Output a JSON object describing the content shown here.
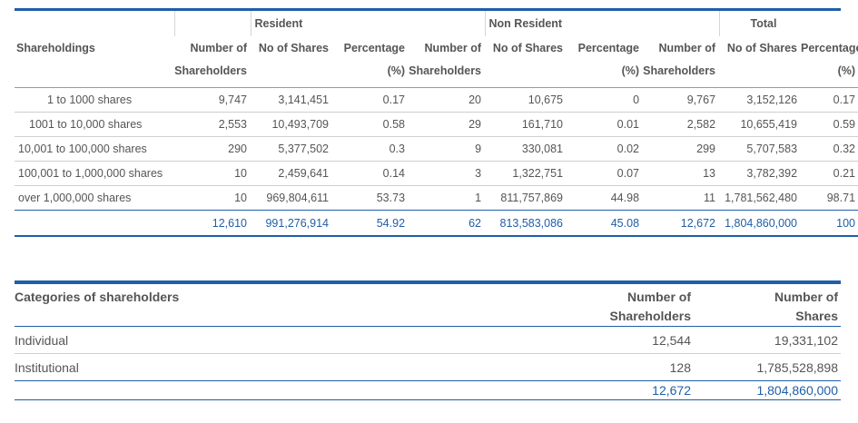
{
  "shareholding_table": {
    "group_headers": [
      "Resident",
      "Non Resident",
      "Total"
    ],
    "col_header_row1": [
      "Shareholdings",
      "Number of",
      "No of Shares",
      "Percentage",
      "Number of",
      "No of Shares",
      "Percentage",
      "Number of",
      "No of Shares",
      "Percentage"
    ],
    "col_header_row2": [
      "",
      "Shareholders",
      "",
      "(%)",
      "Shareholders",
      "",
      "(%)",
      "Shareholders",
      "",
      "(%)"
    ],
    "rows": [
      [
        "1  to 1000 shares",
        "9,747",
        "3,141,451",
        "0.17",
        "20",
        "10,675",
        "0",
        "9,767",
        "3,152,126",
        "0.17"
      ],
      [
        "1001  to 10,000 shares",
        "2,553",
        "10,493,709",
        "0.58",
        "29",
        "161,710",
        "0.01",
        "2,582",
        "10,655,419",
        "0.59"
      ],
      [
        "10,001  to 100,000 shares",
        "290",
        "5,377,502",
        "0.3",
        "9",
        "330,081",
        "0.02",
        "299",
        "5,707,583",
        "0.32"
      ],
      [
        "100,001 to 1,000,000 shares",
        "10",
        "2,459,641",
        "0.14",
        "3",
        "1,322,751",
        "0.07",
        "13",
        "3,782,392",
        "0.21"
      ],
      [
        "over 1,000,000 shares",
        "10",
        "969,804,611",
        "53.73",
        "1",
        "811,757,869",
        "44.98",
        "11",
        "1,781,562,480",
        "98.71"
      ]
    ],
    "totals": [
      "",
      "12,610",
      "991,276,914",
      "54.92",
      "62",
      "813,583,086",
      "45.08",
      "12,672",
      "1,804,860,000",
      "100"
    ]
  },
  "categories_table": {
    "header_label": "Categories of shareholders",
    "col1_line1": "Number of",
    "col1_line2": "Shareholders",
    "col2_line1": "Number of",
    "col2_line2": "Shares",
    "rows": [
      {
        "label": "Individual",
        "holders": "12,544",
        "shares": "19,331,102"
      },
      {
        "label": "Institutional",
        "holders": "128",
        "shares": "1,785,528,898"
      }
    ],
    "total": {
      "label": "",
      "holders": "12,672",
      "shares": "1,804,860,000"
    }
  },
  "colors": {
    "accent": "#1f5ea8",
    "text": "#555555",
    "rule": "#cfcfcf"
  }
}
